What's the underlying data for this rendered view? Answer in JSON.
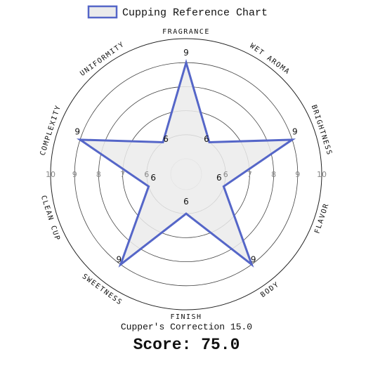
{
  "legend": {
    "label": "Cupping Reference Chart"
  },
  "footer": {
    "correction": "Cupper's Correction 15.0",
    "score": "Score: 75.0"
  },
  "chart_data": {
    "type": "radar",
    "axes": [
      "FRAGRANCE",
      "WET AROMA",
      "BRIGHTNESS",
      "FLAVOR",
      "BODY",
      "FINISH",
      "SWEETNESS",
      "CLEAN CUP",
      "COMPLEXITY",
      "UNIFORMITY"
    ],
    "series": [
      {
        "name": "Cupping Reference Chart",
        "values": [
          9,
          6,
          9,
          6,
          9,
          6,
          9,
          6,
          9,
          6
        ],
        "color": "#5566c8",
        "fill": "#ebebeb"
      }
    ],
    "rlim": [
      5,
      10
    ],
    "ticks": [
      6,
      7,
      8,
      9,
      10
    ],
    "grid": true,
    "legend_position": "top-center"
  }
}
